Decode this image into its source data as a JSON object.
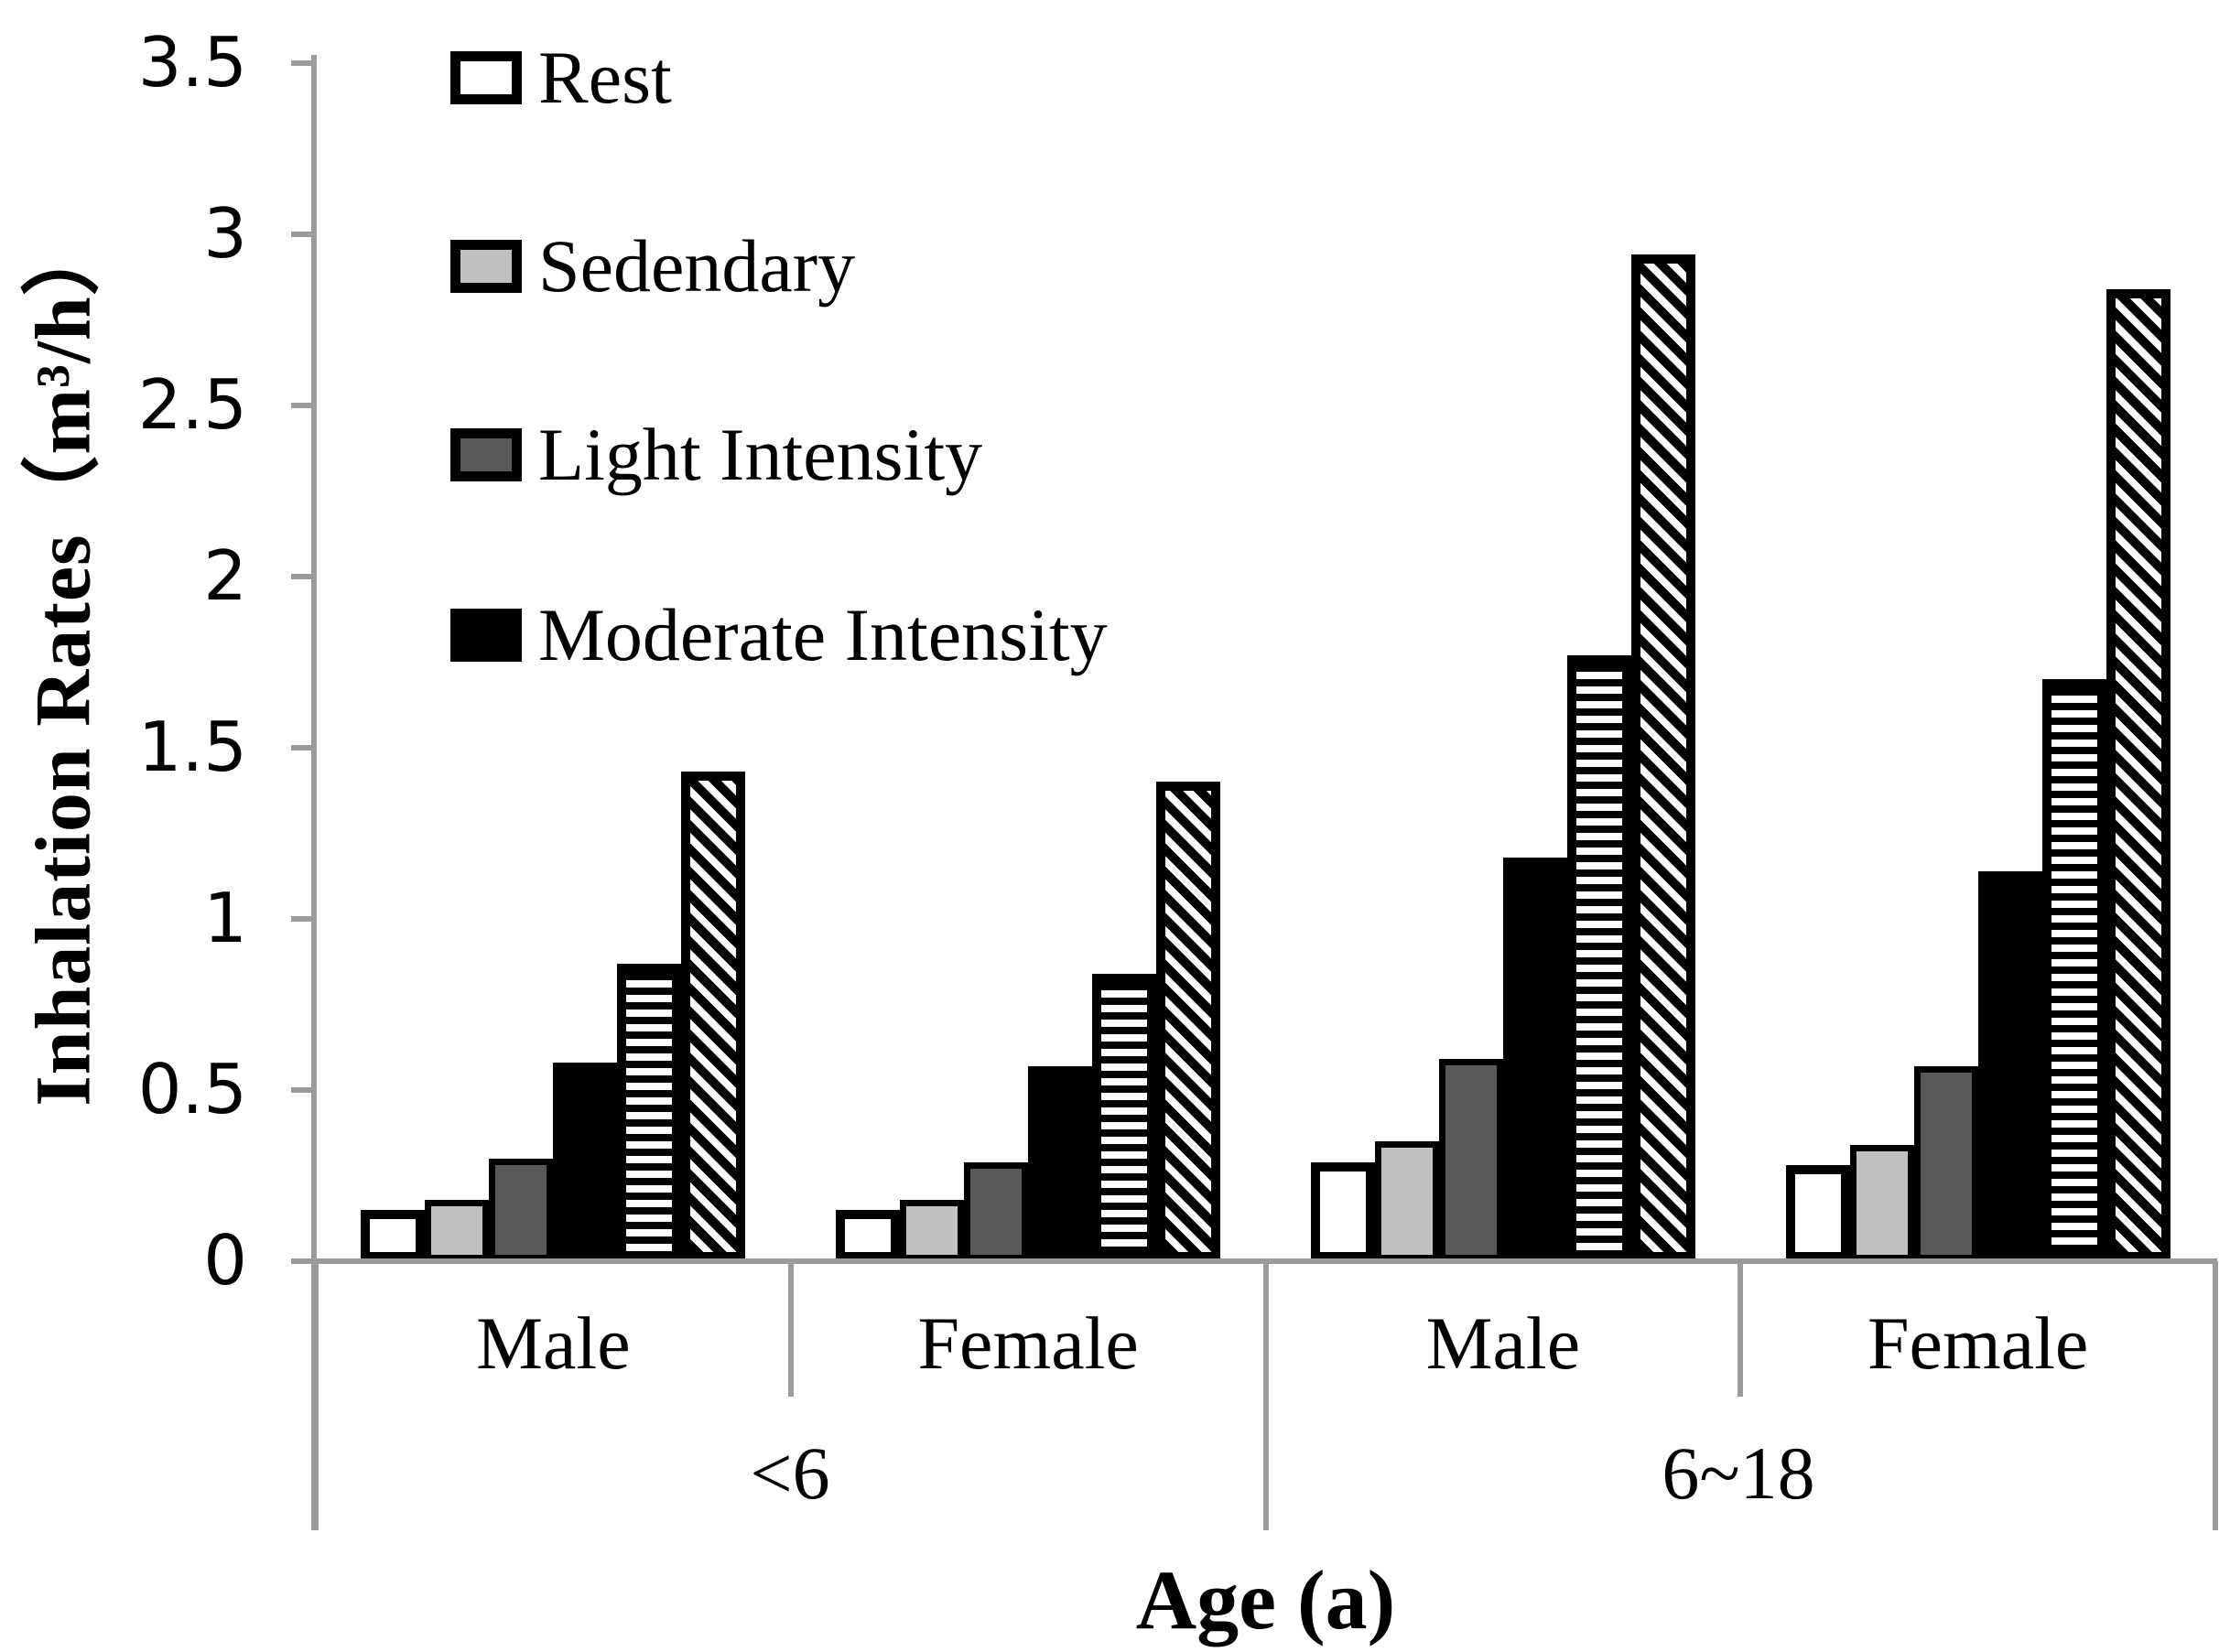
{
  "figure": {
    "y_axis": {
      "title": "Inhalation Rates（m³/h）",
      "tick_labels": [
        "3.5",
        "3",
        "2.5",
        "2",
        "1.5",
        "1",
        "0.5",
        "0"
      ]
    },
    "x_axis": {
      "title": "Age (a)",
      "age_groups": [
        "<6",
        "6~18"
      ],
      "sex_labels": [
        "Male",
        "Female",
        "Male",
        "Female"
      ]
    },
    "legend": [
      {
        "label": "Rest",
        "fill": "white"
      },
      {
        "label": "Sedendary",
        "fill": "light-gray"
      },
      {
        "label": "Light Intensity",
        "fill": "dark-gray"
      },
      {
        "label": "Moderate Intensity",
        "fill": "black"
      }
    ]
  },
  "chart_data": {
    "type": "bar",
    "title": "",
    "xlabel": "Age (a)",
    "ylabel": "Inhalation Rates（m³/h）",
    "ylim": [
      0,
      3.5
    ],
    "ytick_step": 0.5,
    "grid": false,
    "legend_position": "top-left",
    "categories": [
      "Male <6",
      "Female <6",
      "Male 6~18",
      "Female 6~18"
    ],
    "series": [
      {
        "name": "Rest",
        "fill": "white",
        "values": [
          0.15,
          0.15,
          0.29,
          0.28
        ]
      },
      {
        "name": "Sedendary",
        "fill": "light-gray",
        "values": [
          0.18,
          0.18,
          0.35,
          0.34
        ]
      },
      {
        "name": "Light Intensity",
        "fill": "dark-gray",
        "values": [
          0.3,
          0.29,
          0.59,
          0.57
        ]
      },
      {
        "name": "Moderate Intensity",
        "fill": "black",
        "values": [
          0.58,
          0.57,
          1.18,
          1.14
        ]
      },
      {
        "name": "Unlabeled (horizontal stripes)",
        "fill": "h-stripe",
        "values": [
          0.87,
          0.84,
          1.77,
          1.7
        ]
      },
      {
        "name": "Unlabeled (diagonal stripes)",
        "fill": "d-stripe",
        "values": [
          1.43,
          1.4,
          2.94,
          2.84
        ]
      }
    ]
  },
  "colors": {
    "axis_gray": "#9b9b9b",
    "light_gray": "#c0c0c0",
    "dark_gray": "#595959",
    "black": "#000000",
    "white": "#ffffff"
  }
}
